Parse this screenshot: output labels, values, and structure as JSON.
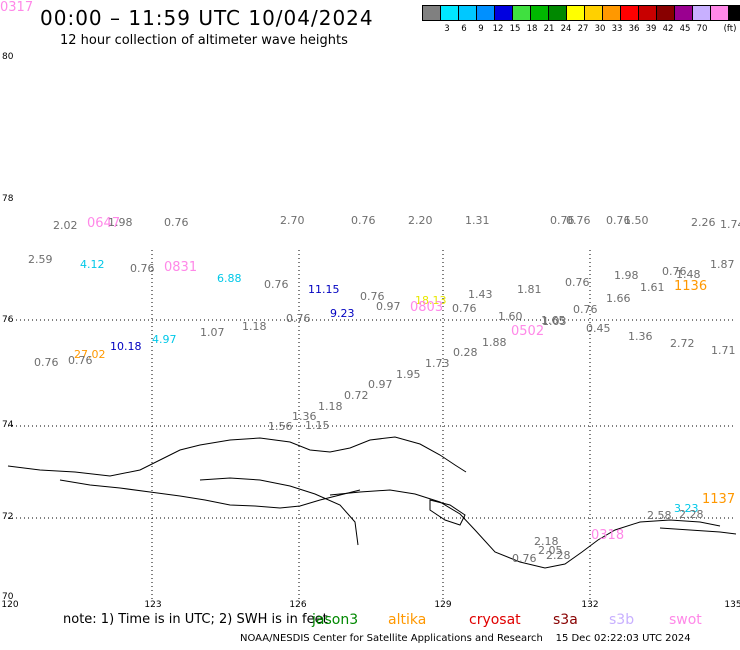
{
  "header": {
    "title": "00:00 – 11:59 UTC 10/04/2024",
    "subtitle": "12 hour collection of altimeter wave heights"
  },
  "legend": {
    "unit": "(ft)",
    "bins": [
      {
        "color": "#808080",
        "label": ""
      },
      {
        "color": "#00e8ff",
        "label": "3"
      },
      {
        "color": "#00c8ff",
        "label": "6"
      },
      {
        "color": "#0090ff",
        "label": "9"
      },
      {
        "color": "#0000e0",
        "label": "12"
      },
      {
        "color": "#40e040",
        "label": "15"
      },
      {
        "color": "#00b800",
        "label": "18"
      },
      {
        "color": "#008800",
        "label": "21"
      },
      {
        "color": "#ffff00",
        "label": "24"
      },
      {
        "color": "#ffd000",
        "label": "27"
      },
      {
        "color": "#ff9800",
        "label": "30"
      },
      {
        "color": "#ff0000",
        "label": "33"
      },
      {
        "color": "#c80000",
        "label": "36"
      },
      {
        "color": "#880000",
        "label": "39"
      },
      {
        "color": "#9a0090",
        "label": "42"
      },
      {
        "color": "#c8b0ff",
        "label": "45"
      },
      {
        "color": "#ff88e8",
        "label": "70"
      },
      {
        "color": "#000000",
        "label": ""
      }
    ]
  },
  "axes": {
    "lat_labels": [
      "80",
      "78",
      "76",
      "74",
      "72",
      "70"
    ],
    "lon_labels": [
      "120",
      "123",
      "126",
      "129",
      "132",
      "135"
    ]
  },
  "observations": [
    {
      "t": "2.02",
      "c": "#6e6e6e"
    },
    {
      "t": "0647",
      "c": "#ff88e8",
      "big": true
    },
    {
      "t": "1.98",
      "c": "#6e6e6e"
    },
    {
      "t": "0.76",
      "c": "#6e6e6e"
    },
    {
      "t": "2.70",
      "c": "#6e6e6e"
    },
    {
      "t": "0.76",
      "c": "#6e6e6e"
    },
    {
      "t": "2.20",
      "c": "#6e6e6e"
    },
    {
      "t": "1.31",
      "c": "#6e6e6e"
    },
    {
      "t": "0.76",
      "c": "#6e6e6e"
    },
    {
      "t": "0.76",
      "c": "#6e6e6e"
    },
    {
      "t": "0.76",
      "c": "#6e6e6e"
    },
    {
      "t": "1.50",
      "c": "#6e6e6e"
    },
    {
      "t": "2.26",
      "c": "#6e6e6e"
    },
    {
      "t": "1.74",
      "c": "#6e6e6e"
    },
    {
      "t": "2.59",
      "c": "#6e6e6e"
    },
    {
      "t": "4.12",
      "c": "#00c8e8"
    },
    {
      "t": "0.76",
      "c": "#6e6e6e"
    },
    {
      "t": "0831",
      "c": "#ff88e8",
      "big": true
    },
    {
      "t": "6.88",
      "c": "#00c8e8"
    },
    {
      "t": "0.76",
      "c": "#6e6e6e"
    },
    {
      "t": "11.15",
      "c": "#0000c0"
    },
    {
      "t": "0.76",
      "c": "#6e6e6e"
    },
    {
      "t": "0.97",
      "c": "#6e6e6e"
    },
    {
      "t": "18.13",
      "c": "#e8e800"
    },
    {
      "t": "0803",
      "c": "#ff88e8",
      "big": true
    },
    {
      "t": "1.43",
      "c": "#6e6e6e"
    },
    {
      "t": "1.81",
      "c": "#6e6e6e"
    },
    {
      "t": "0.76",
      "c": "#6e6e6e"
    },
    {
      "t": "1.98",
      "c": "#6e6e6e"
    },
    {
      "t": "0.76",
      "c": "#6e6e6e"
    },
    {
      "t": "1.48",
      "c": "#6e6e6e"
    },
    {
      "t": "1.61",
      "c": "#6e6e6e"
    },
    {
      "t": "1136",
      "c": "#ff9800",
      "big": true
    },
    {
      "t": "1.87",
      "c": "#6e6e6e"
    },
    {
      "t": "0.76",
      "c": "#6e6e6e"
    },
    {
      "t": "9.23",
      "c": "#0000c0"
    },
    {
      "t": "0.76",
      "c": "#6e6e6e"
    },
    {
      "t": "1.60",
      "c": "#6e6e6e"
    },
    {
      "t": "1.65",
      "c": "#6e6e6e"
    },
    {
      "t": "0.76",
      "c": "#6e6e6e"
    },
    {
      "t": "1.66",
      "c": "#6e6e6e"
    },
    {
      "t": "1.18",
      "c": "#6e6e6e"
    },
    {
      "t": "1.07",
      "c": "#6e6e6e"
    },
    {
      "t": "4.97",
      "c": "#00c8e8"
    },
    {
      "t": "10.18",
      "c": "#0000c0"
    },
    {
      "t": "27.02",
      "c": "#ff9800"
    },
    {
      "t": "0.76",
      "c": "#6e6e6e"
    },
    {
      "t": "0.76",
      "c": "#6e6e6e"
    },
    {
      "t": "0502",
      "c": "#ff88e8",
      "big": true
    },
    {
      "t": "1.03",
      "c": "#6e6e6e"
    },
    {
      "t": "0.45",
      "c": "#6e6e6e"
    },
    {
      "t": "1.36",
      "c": "#6e6e6e"
    },
    {
      "t": "2.72",
      "c": "#6e6e6e"
    },
    {
      "t": "1.71",
      "c": "#6e6e6e"
    },
    {
      "t": "1.88",
      "c": "#6e6e6e"
    },
    {
      "t": "0.28",
      "c": "#6e6e6e"
    },
    {
      "t": "1.73",
      "c": "#6e6e6e"
    },
    {
      "t": "1.95",
      "c": "#6e6e6e"
    },
    {
      "t": "0.97",
      "c": "#6e6e6e"
    },
    {
      "t": "0.72",
      "c": "#6e6e6e"
    },
    {
      "t": "1.18",
      "c": "#6e6e6e"
    },
    {
      "t": "1.36",
      "c": "#6e6e6e"
    },
    {
      "t": "1.56",
      "c": "#6e6e6e"
    },
    {
      "t": "1.15",
      "c": "#6e6e6e"
    },
    {
      "t": "1137",
      "c": "#ff9800",
      "big": true
    },
    {
      "t": "3.23",
      "c": "#00c8e8"
    },
    {
      "t": "2.58",
      "c": "#6e6e6e"
    },
    {
      "t": "2.28",
      "c": "#6e6e6e"
    },
    {
      "t": "0318",
      "c": "#ff88e8",
      "big": true
    },
    {
      "t": "2.18",
      "c": "#6e6e6e"
    },
    {
      "t": "2.05",
      "c": "#6e6e6e"
    },
    {
      "t": "0.76",
      "c": "#6e6e6e"
    },
    {
      "t": "2.28",
      "c": "#6e6e6e"
    },
    {
      "t": "0317",
      "c": "#ff88e8",
      "big": true
    }
  ],
  "footer": {
    "note": "note: 1) Time is in UTC; 2) SWH is in feet",
    "satellites": [
      {
        "name": "jason3",
        "color": "#008800"
      },
      {
        "name": "altika",
        "color": "#ff9800"
      },
      {
        "name": "cryosat",
        "color": "#e00000"
      },
      {
        "name": "s3a",
        "color": "#880000"
      },
      {
        "name": "s3b",
        "color": "#c8b0ff"
      },
      {
        "name": "swot",
        "color": "#ff88e8"
      }
    ],
    "credit": "NOAA/NESDIS Center for Satellite Applications and Research",
    "timestamp": "15 Dec 02:22:03 UTC 2024"
  }
}
